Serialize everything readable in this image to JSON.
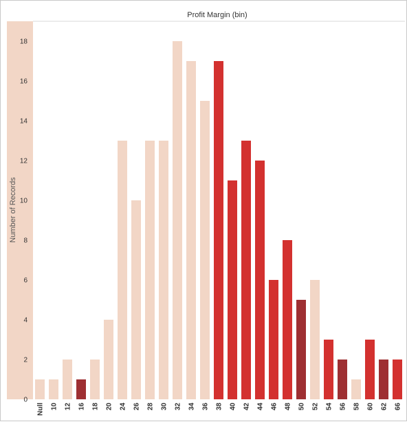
{
  "chart_data": {
    "type": "bar",
    "title": "Profit Margin (bin)",
    "xlabel": "",
    "ylabel": "Number of Records",
    "ylim": [
      0,
      18.5
    ],
    "yticks": [
      0,
      2,
      4,
      6,
      8,
      10,
      12,
      14,
      16,
      18
    ],
    "grid": false,
    "legend": "none",
    "categories": [
      "Null",
      "10",
      "12",
      "16",
      "18",
      "20",
      "24",
      "26",
      "28",
      "30",
      "32",
      "34",
      "36",
      "38",
      "40",
      "42",
      "44",
      "46",
      "48",
      "50",
      "52",
      "54",
      "56",
      "58",
      "60",
      "62",
      "66"
    ],
    "values": [
      1,
      1,
      2,
      1,
      2,
      4,
      13,
      10,
      13,
      13,
      18,
      17,
      15,
      17,
      11,
      13,
      12,
      6,
      8,
      5,
      6,
      3,
      2,
      1,
      3,
      2,
      2
    ],
    "bar_colors": [
      "#f2d6c6",
      "#f2d6c6",
      "#f2d6c6",
      "#9e2f32",
      "#f2d6c6",
      "#f2d6c6",
      "#f2d6c6",
      "#f2d6c6",
      "#f2d6c6",
      "#f2d6c6",
      "#f2d6c6",
      "#f2d6c6",
      "#f2d6c6",
      "#d3312f",
      "#d3312f",
      "#d3312f",
      "#d3312f",
      "#d3312f",
      "#d3312f",
      "#9e2f32",
      "#f2d6c6",
      "#d3312f",
      "#9e2f32",
      "#f2d6c6",
      "#d3312f",
      "#9e2f32",
      "#d3312f"
    ],
    "axis_band_color": "#f2d6c6"
  }
}
